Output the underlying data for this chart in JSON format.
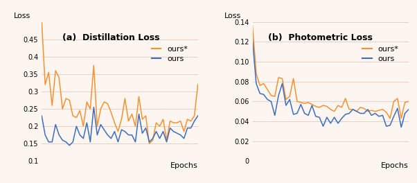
{
  "fig_width": 6.02,
  "fig_height": 2.64,
  "bg_color": "#fdf5f0",
  "color_ours_star": "#f5922f",
  "color_ours": "#3b6dbf",
  "plot_a_title": "(a)  Distillation Loss",
  "plot_a_ylabel": "Loss",
  "plot_a_xlabel": "Epochs",
  "plot_a_ylim": [
    0.1,
    0.5
  ],
  "plot_a_yticks": [
    0.1,
    0.15,
    0.2,
    0.25,
    0.3,
    0.35,
    0.4,
    0.45
  ],
  "plot_b_title": "(b)  Photometric Loss",
  "plot_b_ylabel": "Loss",
  "plot_b_xlabel": "Epochs",
  "plot_b_ylim": [
    0.0,
    0.14
  ],
  "plot_b_yticks": [
    0.0,
    0.02,
    0.04,
    0.06,
    0.08,
    0.1,
    0.12,
    0.14
  ],
  "dist_ours_star": [
    0.5,
    0.32,
    0.355,
    0.26,
    0.36,
    0.34,
    0.25,
    0.28,
    0.275,
    0.23,
    0.225,
    0.245,
    0.2,
    0.27,
    0.25,
    0.375,
    0.2,
    0.25,
    0.27,
    0.265,
    0.24,
    0.21,
    0.185,
    0.22,
    0.28,
    0.215,
    0.235,
    0.2,
    0.285,
    0.22,
    0.23,
    0.15,
    0.16,
    0.21,
    0.2,
    0.22,
    0.16,
    0.215,
    0.21,
    0.21,
    0.215,
    0.185,
    0.22,
    0.215,
    0.23,
    0.32
  ],
  "dist_ours": [
    0.23,
    0.175,
    0.155,
    0.155,
    0.205,
    0.175,
    0.16,
    0.155,
    0.145,
    0.155,
    0.2,
    0.175,
    0.165,
    0.21,
    0.155,
    0.255,
    0.175,
    0.205,
    0.19,
    0.175,
    0.165,
    0.185,
    0.155,
    0.19,
    0.185,
    0.175,
    0.175,
    0.155,
    0.235,
    0.18,
    0.195,
    0.155,
    0.165,
    0.185,
    0.165,
    0.185,
    0.155,
    0.195,
    0.185,
    0.18,
    0.175,
    0.165,
    0.195,
    0.195,
    0.215,
    0.23
  ],
  "photo_ours_star": [
    0.136,
    0.088,
    0.076,
    0.078,
    0.072,
    0.066,
    0.065,
    0.084,
    0.083,
    0.062,
    0.065,
    0.083,
    0.06,
    0.059,
    0.058,
    0.059,
    0.057,
    0.055,
    0.054,
    0.056,
    0.055,
    0.052,
    0.05,
    0.056,
    0.054,
    0.063,
    0.052,
    0.052,
    0.05,
    0.054,
    0.053,
    0.05,
    0.051,
    0.05,
    0.051,
    0.052,
    0.049,
    0.043,
    0.06,
    0.063,
    0.043,
    0.059,
    0.06
  ],
  "photo_ours": [
    0.122,
    0.078,
    0.068,
    0.067,
    0.062,
    0.06,
    0.046,
    0.066,
    0.078,
    0.056,
    0.062,
    0.047,
    0.048,
    0.057,
    0.048,
    0.046,
    0.056,
    0.045,
    0.044,
    0.035,
    0.044,
    0.038,
    0.044,
    0.038,
    0.043,
    0.047,
    0.048,
    0.052,
    0.05,
    0.048,
    0.048,
    0.052,
    0.046,
    0.048,
    0.045,
    0.046,
    0.035,
    0.036,
    0.045,
    0.053,
    0.034,
    0.048,
    0.052
  ]
}
